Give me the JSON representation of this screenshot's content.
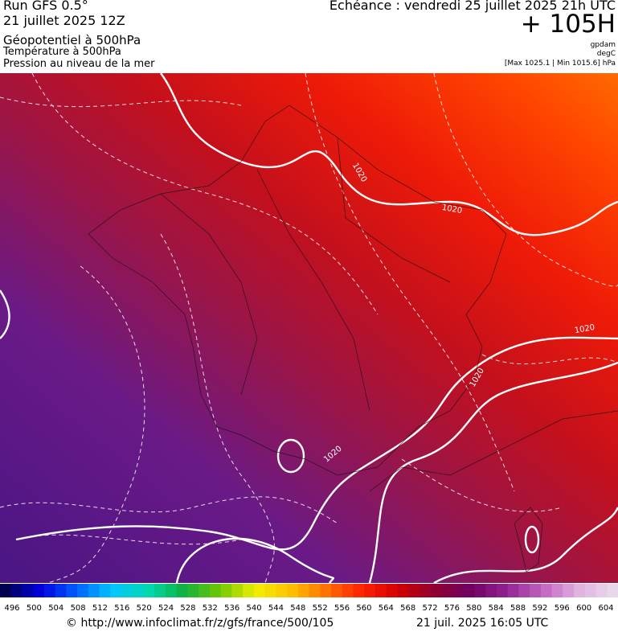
{
  "header": {
    "run": "Run GFS 0.5°",
    "date": "21 juillet 2025 12Z",
    "title": "Géopotentiel à 500hPa",
    "line2": "Température à 500hPa",
    "line3": "Pression au niveau de la mer",
    "echeance": "Echéance : vendredi 25 juillet 2025 21h UTC",
    "lead": "+ 105H",
    "unit1": "gpdam",
    "unit2": "degC",
    "maxmin": "[Max 1025.1 | Min 1015.6] hPa"
  },
  "map": {
    "isobar_labels": [
      1020,
      1020,
      1020,
      1020,
      1020
    ]
  },
  "colorbar": {
    "labels": [
      496,
      500,
      504,
      508,
      512,
      516,
      520,
      524,
      528,
      532,
      536,
      540,
      544,
      548,
      552,
      556,
      560,
      564,
      568,
      572,
      576,
      580,
      584,
      588,
      592,
      596,
      600,
      604
    ]
  },
  "footer": {
    "url": "© http://www.infoclimat.fr/z/gfs/france/500/105",
    "timestamp": "21 juil. 2025 16:05 UTC"
  }
}
